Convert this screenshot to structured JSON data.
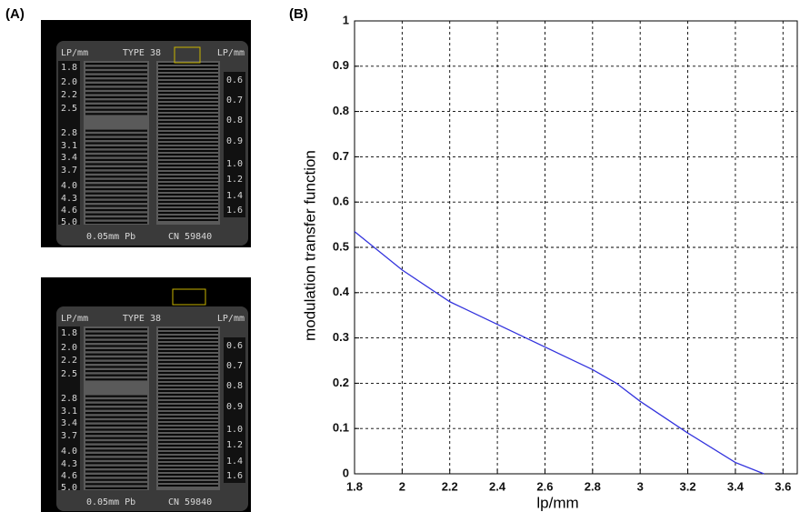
{
  "panel_a": {
    "label": "(A)",
    "phantom": {
      "header_left": "LP/mm",
      "type": "TYPE 38",
      "header_right": "LP/mm",
      "left_scale": [
        "1.8",
        "2.0",
        "2.2",
        "2.5",
        "2.8",
        "3.1",
        "3.4",
        "3.7",
        "4.0",
        "4.3",
        "4.6",
        "5.0"
      ],
      "right_scale": [
        "0.6",
        "0.7",
        "0.8",
        "0.9",
        "1.0",
        "1.2",
        "1.4",
        "1.6"
      ],
      "filter": "0.05mm Pb",
      "serial": "CN 59840"
    }
  },
  "chart_data": {
    "type": "line",
    "panel_label": "(B)",
    "x_label": "lp/mm",
    "y_label": "modulation transfer function",
    "x": [
      1.8,
      2.0,
      2.2,
      2.4,
      2.6,
      2.8,
      2.9,
      3.0,
      3.2,
      3.4,
      3.52
    ],
    "values": [
      0.535,
      0.45,
      0.38,
      0.33,
      0.28,
      0.23,
      0.2,
      0.16,
      0.09,
      0.025,
      0
    ],
    "color": "#3333dd",
    "xlim": [
      1.8,
      3.66
    ],
    "ylim": [
      0,
      1
    ],
    "xticks": [
      1.8,
      2,
      2.2,
      2.4,
      2.6,
      2.8,
      3,
      3.2,
      3.4,
      3.6
    ],
    "yticks": [
      0,
      0.1,
      0.2,
      0.3,
      0.4,
      0.5,
      0.6,
      0.7,
      0.8,
      0.9,
      1
    ],
    "grid": true
  }
}
